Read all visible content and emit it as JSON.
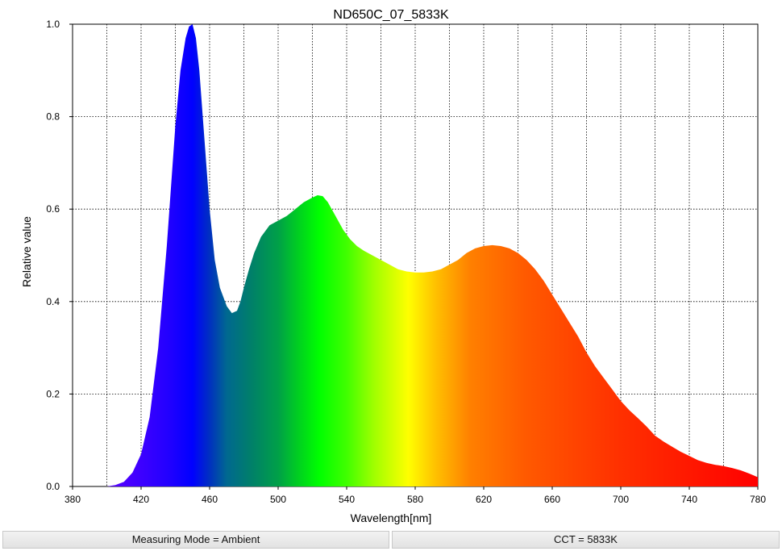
{
  "chart_data": {
    "type": "area",
    "title": "ND650C_07_5833K",
    "xlabel": "Wavelength[nm]",
    "ylabel": "Relative value",
    "xlim": [
      380,
      780
    ],
    "ylim": [
      0,
      1.0
    ],
    "x_ticks": [
      380,
      420,
      460,
      500,
      540,
      580,
      620,
      660,
      700,
      740,
      780
    ],
    "x_tick_labels": [
      "380",
      "420",
      "460",
      "500",
      "540",
      "580",
      "620",
      "660",
      "700",
      "740",
      "780"
    ],
    "y_ticks": [
      0,
      0.2,
      0.4,
      0.6,
      0.8,
      1.0
    ],
    "y_tick_labels": [
      "0.0",
      "0.2",
      "0.4",
      "0.6",
      "0.8",
      "1.0"
    ],
    "grid": true,
    "fill": "spectral-gradient",
    "x": [
      380,
      400,
      405,
      410,
      415,
      420,
      425,
      430,
      435,
      440,
      443,
      446,
      448,
      450,
      452,
      454,
      456,
      458,
      460,
      463,
      466,
      470,
      473,
      476,
      478,
      480,
      483,
      486,
      490,
      495,
      500,
      505,
      510,
      515,
      520,
      523,
      526,
      529,
      532,
      535,
      538,
      542,
      546,
      550,
      555,
      560,
      565,
      570,
      575,
      580,
      585,
      590,
      595,
      600,
      605,
      610,
      615,
      620,
      625,
      630,
      635,
      640,
      645,
      650,
      655,
      660,
      665,
      670,
      675,
      680,
      685,
      690,
      695,
      700,
      705,
      710,
      715,
      720,
      725,
      730,
      735,
      740,
      745,
      750,
      755,
      760,
      765,
      770,
      775,
      780
    ],
    "values": [
      0,
      0,
      0.003,
      0.01,
      0.03,
      0.07,
      0.15,
      0.3,
      0.52,
      0.78,
      0.9,
      0.97,
      0.995,
      1.0,
      0.97,
      0.9,
      0.8,
      0.7,
      0.6,
      0.49,
      0.43,
      0.39,
      0.375,
      0.38,
      0.4,
      0.43,
      0.47,
      0.505,
      0.54,
      0.565,
      0.575,
      0.585,
      0.6,
      0.615,
      0.625,
      0.63,
      0.628,
      0.615,
      0.595,
      0.575,
      0.555,
      0.535,
      0.52,
      0.51,
      0.5,
      0.49,
      0.48,
      0.47,
      0.465,
      0.463,
      0.463,
      0.465,
      0.47,
      0.48,
      0.49,
      0.505,
      0.515,
      0.52,
      0.522,
      0.52,
      0.515,
      0.505,
      0.49,
      0.47,
      0.445,
      0.415,
      0.385,
      0.355,
      0.325,
      0.29,
      0.26,
      0.235,
      0.21,
      0.185,
      0.165,
      0.148,
      0.13,
      0.11,
      0.097,
      0.086,
      0.075,
      0.066,
      0.057,
      0.051,
      0.047,
      0.044,
      0.04,
      0.035,
      0.028,
      0.02
    ]
  },
  "status": {
    "measuring_mode": "Measuring Mode = Ambient",
    "cct": "CCT = 5833K"
  }
}
